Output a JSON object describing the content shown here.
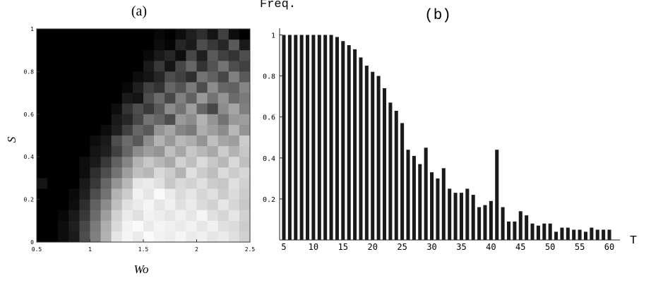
{
  "chart_data": [
    {
      "type": "heatmap",
      "panel_label": "(a)",
      "xlabel": "Wo",
      "ylabel": "S",
      "xlim": [
        0.5,
        2.5
      ],
      "ylim": [
        0,
        1
      ],
      "x_ticks": [
        0.5,
        1,
        1.5,
        2,
        2.5
      ],
      "x_tick_labels": [
        "0.5",
        "1",
        "1.5",
        "2",
        "2.5"
      ],
      "y_ticks": [
        0,
        0.2,
        0.4,
        0.6,
        0.8,
        1
      ],
      "y_tick_labels": [
        "0",
        "0.2",
        "0.4",
        "0.6",
        "0.8",
        "1"
      ],
      "colorscale": "grayscale",
      "grid": false,
      "cols": 20,
      "rows": 20,
      "brightness": [
        [
          0.0,
          0.0,
          0.0,
          0.0,
          0.0,
          0.0,
          0.0,
          0.0,
          0.0,
          0.0,
          0.0,
          0.03,
          0.0,
          0.05,
          0.12,
          0.18,
          0.08,
          0.25,
          0.05,
          0.0
        ],
        [
          0.0,
          0.0,
          0.0,
          0.0,
          0.0,
          0.0,
          0.0,
          0.0,
          0.0,
          0.0,
          0.0,
          0.05,
          0.02,
          0.15,
          0.1,
          0.3,
          0.22,
          0.15,
          0.35,
          0.1
        ],
        [
          0.0,
          0.0,
          0.0,
          0.0,
          0.0,
          0.0,
          0.0,
          0.0,
          0.0,
          0.0,
          0.04,
          0.1,
          0.15,
          0.05,
          0.28,
          0.12,
          0.35,
          0.25,
          0.2,
          0.3
        ],
        [
          0.0,
          0.0,
          0.0,
          0.0,
          0.0,
          0.0,
          0.0,
          0.0,
          0.0,
          0.0,
          0.1,
          0.22,
          0.08,
          0.28,
          0.4,
          0.2,
          0.32,
          0.45,
          0.3,
          0.25
        ],
        [
          0.0,
          0.0,
          0.0,
          0.0,
          0.0,
          0.0,
          0.0,
          0.0,
          0.0,
          0.05,
          0.08,
          0.15,
          0.3,
          0.25,
          0.18,
          0.45,
          0.38,
          0.28,
          0.5,
          0.35
        ],
        [
          0.0,
          0.0,
          0.0,
          0.0,
          0.0,
          0.0,
          0.0,
          0.0,
          0.03,
          0.12,
          0.25,
          0.2,
          0.4,
          0.33,
          0.48,
          0.3,
          0.55,
          0.4,
          0.38,
          0.52
        ],
        [
          0.0,
          0.0,
          0.0,
          0.0,
          0.0,
          0.0,
          0.0,
          0.0,
          0.1,
          0.08,
          0.3,
          0.42,
          0.28,
          0.5,
          0.38,
          0.6,
          0.45,
          0.58,
          0.42,
          0.48
        ],
        [
          0.0,
          0.0,
          0.0,
          0.0,
          0.0,
          0.0,
          0.0,
          0.05,
          0.2,
          0.3,
          0.22,
          0.35,
          0.55,
          0.45,
          0.62,
          0.4,
          0.28,
          0.55,
          0.65,
          0.5
        ],
        [
          0.0,
          0.0,
          0.0,
          0.0,
          0.0,
          0.0,
          0.0,
          0.1,
          0.15,
          0.28,
          0.45,
          0.4,
          0.3,
          0.6,
          0.55,
          0.7,
          0.58,
          0.45,
          0.6,
          0.62
        ],
        [
          0.0,
          0.0,
          0.0,
          0.0,
          0.0,
          0.0,
          0.05,
          0.12,
          0.25,
          0.4,
          0.35,
          0.58,
          0.65,
          0.52,
          0.48,
          0.68,
          0.62,
          0.55,
          0.72,
          0.58
        ],
        [
          0.0,
          0.0,
          0.0,
          0.0,
          0.0,
          0.05,
          0.1,
          0.3,
          0.42,
          0.35,
          0.55,
          0.7,
          0.6,
          0.72,
          0.68,
          0.58,
          0.75,
          0.65,
          0.62,
          0.8
        ],
        [
          0.0,
          0.0,
          0.0,
          0.0,
          0.0,
          0.08,
          0.12,
          0.25,
          0.4,
          0.55,
          0.62,
          0.58,
          0.75,
          0.65,
          0.78,
          0.72,
          0.66,
          0.8,
          0.7,
          0.78
        ],
        [
          0.0,
          0.0,
          0.0,
          0.0,
          0.05,
          0.1,
          0.22,
          0.38,
          0.52,
          0.7,
          0.78,
          0.72,
          0.66,
          0.82,
          0.75,
          0.86,
          0.78,
          0.72,
          0.85,
          0.75
        ],
        [
          0.0,
          0.0,
          0.0,
          0.0,
          0.05,
          0.18,
          0.3,
          0.45,
          0.62,
          0.75,
          0.72,
          0.85,
          0.8,
          0.7,
          0.88,
          0.8,
          0.74,
          0.86,
          0.8,
          0.84
        ],
        [
          0.08,
          0.0,
          0.0,
          0.0,
          0.1,
          0.22,
          0.4,
          0.58,
          0.72,
          0.9,
          0.92,
          0.88,
          0.78,
          0.85,
          0.82,
          0.88,
          0.8,
          0.78,
          0.88,
          0.82
        ],
        [
          0.0,
          0.0,
          0.0,
          0.04,
          0.12,
          0.3,
          0.45,
          0.7,
          0.8,
          0.95,
          0.9,
          0.98,
          0.92,
          0.86,
          0.9,
          0.84,
          0.88,
          0.8,
          0.86,
          0.8
        ],
        [
          0.0,
          0.0,
          0.0,
          0.05,
          0.18,
          0.38,
          0.55,
          0.75,
          0.88,
          0.92,
          0.96,
          0.9,
          0.94,
          0.88,
          0.92,
          0.86,
          0.82,
          0.9,
          0.84,
          0.78
        ],
        [
          0.0,
          0.0,
          0.03,
          0.1,
          0.22,
          0.42,
          0.62,
          0.82,
          0.92,
          0.88,
          0.95,
          0.93,
          0.9,
          0.94,
          0.9,
          0.96,
          0.88,
          0.84,
          0.9,
          0.82
        ],
        [
          0.0,
          0.0,
          0.05,
          0.12,
          0.28,
          0.48,
          0.68,
          0.85,
          0.95,
          0.98,
          0.92,
          0.96,
          0.94,
          0.92,
          0.95,
          0.9,
          0.94,
          0.88,
          0.86,
          0.8
        ],
        [
          0.0,
          0.0,
          0.05,
          0.1,
          0.3,
          0.5,
          0.7,
          0.9,
          0.96,
          0.92,
          0.98,
          0.95,
          0.93,
          0.96,
          0.92,
          0.94,
          0.9,
          0.92,
          0.88,
          0.82
        ]
      ]
    },
    {
      "type": "bar",
      "panel_label": "(b)",
      "xlabel": "T",
      "ylabel": "Freq.",
      "xlim": [
        4.5,
        61
      ],
      "ylim": [
        0,
        1.05
      ],
      "x_ticks": [
        5,
        10,
        15,
        20,
        25,
        30,
        35,
        40,
        45,
        50,
        55,
        60
      ],
      "x_tick_labels": [
        "5",
        "10",
        "15",
        "20",
        "25",
        "30",
        "35",
        "40",
        "45",
        "50",
        "55",
        "60"
      ],
      "y_ticks": [
        0.2,
        0.4,
        0.6,
        0.8,
        1
      ],
      "y_tick_labels": [
        "0.2",
        "0.4",
        "0.6",
        "0.8",
        "1"
      ],
      "bar_color": "#1a1a1a",
      "grid": false,
      "x": [
        5,
        6,
        7,
        8,
        9,
        10,
        11,
        12,
        13,
        14,
        15,
        16,
        17,
        18,
        19,
        20,
        21,
        22,
        23,
        24,
        25,
        26,
        27,
        28,
        29,
        30,
        31,
        32,
        33,
        34,
        35,
        36,
        37,
        38,
        39,
        40,
        41,
        42,
        43,
        44,
        45,
        46,
        47,
        48,
        49,
        50,
        51,
        52,
        53,
        54,
        55,
        56,
        57,
        58,
        59,
        60
      ],
      "values": [
        1.0,
        1.0,
        1.0,
        1.0,
        1.0,
        1.0,
        1.0,
        1.0,
        1.0,
        0.99,
        0.97,
        0.95,
        0.93,
        0.89,
        0.85,
        0.82,
        0.8,
        0.74,
        0.67,
        0.63,
        0.57,
        0.44,
        0.41,
        0.37,
        0.45,
        0.33,
        0.3,
        0.35,
        0.25,
        0.23,
        0.23,
        0.25,
        0.22,
        0.16,
        0.17,
        0.19,
        0.44,
        0.16,
        0.09,
        0.09,
        0.14,
        0.12,
        0.08,
        0.07,
        0.08,
        0.08,
        0.04,
        0.06,
        0.06,
        0.05,
        0.05,
        0.04,
        0.06,
        0.05,
        0.05,
        0.05
      ]
    }
  ]
}
